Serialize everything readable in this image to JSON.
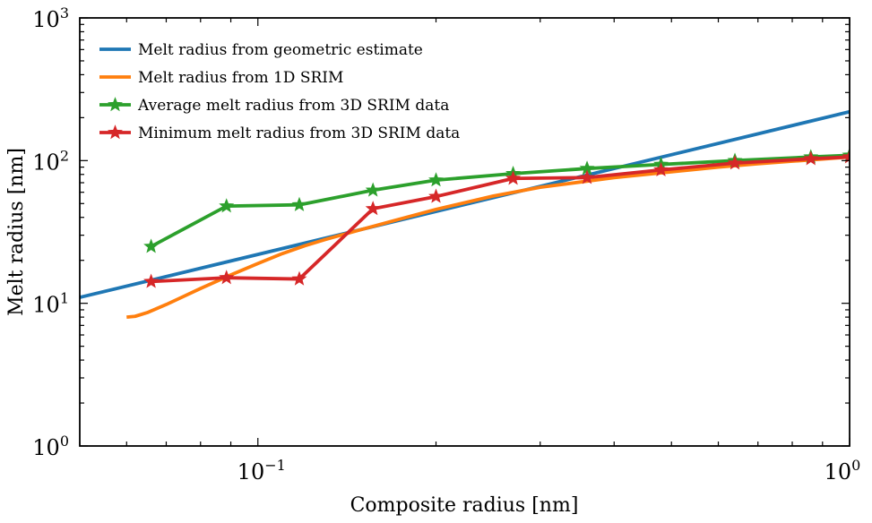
{
  "chart_data": {
    "type": "line",
    "xlabel": "Composite radius [nm]",
    "ylabel": "Melt radius [nm]",
    "x_scale": "log",
    "y_scale": "log",
    "xlim": [
      0.05,
      1
    ],
    "ylim": [
      1,
      1000
    ],
    "x_ticks": [
      {
        "value": 0.1,
        "base": "10",
        "exp": "−1"
      },
      {
        "value": 1,
        "base": "10",
        "exp": "0"
      }
    ],
    "y_ticks": [
      {
        "value": 1,
        "base": "10",
        "exp": "0"
      },
      {
        "value": 10,
        "base": "10",
        "exp": "1"
      },
      {
        "value": 100,
        "base": "10",
        "exp": "2"
      },
      {
        "value": 1000,
        "base": "10",
        "exp": "3"
      }
    ],
    "grid": false,
    "legend_position": "top-left",
    "series": [
      {
        "name": "Melt radius from geometric estimate",
        "color": "#1f77b4",
        "marker": "none",
        "x": [
          0.05,
          1
        ],
        "y": [
          11,
          220
        ]
      },
      {
        "name": "Melt radius from 1D SRIM",
        "color": "#ff7f0e",
        "marker": "none",
        "x": [
          0.06,
          0.062,
          0.065,
          0.07,
          0.075,
          0.08,
          0.09,
          0.1,
          0.11,
          0.12,
          0.13,
          0.15,
          0.17,
          0.2,
          0.25,
          0.3,
          0.4,
          0.5,
          0.6,
          0.7,
          0.8,
          0.9,
          1.0
        ],
        "y": [
          8.0,
          8.1,
          8.6,
          9.8,
          11.2,
          12.7,
          15.8,
          19.0,
          22.3,
          25.3,
          28.0,
          33.0,
          38.0,
          45.5,
          56.5,
          65.0,
          76.0,
          83.5,
          90.0,
          95.0,
          99.0,
          102.5,
          106.0
        ]
      },
      {
        "name": "Average melt radius from 3D SRIM data",
        "color": "#2ca02c",
        "marker": "star",
        "x": [
          0.066,
          0.0885,
          0.1175,
          0.1565,
          0.2,
          0.27,
          0.36,
          0.48,
          0.64,
          0.86,
          1.0
        ],
        "y": [
          25,
          48,
          49,
          62,
          73,
          81,
          88,
          94,
          100,
          106,
          109
        ]
      },
      {
        "name": "Minimum melt radius from 3D SRIM data",
        "color": "#d62728",
        "marker": "star",
        "x": [
          0.066,
          0.0885,
          0.1175,
          0.1565,
          0.2,
          0.27,
          0.36,
          0.48,
          0.64,
          0.86,
          1.0
        ],
        "y": [
          14.2,
          15.1,
          14.8,
          46,
          56,
          75,
          76,
          86,
          96,
          103,
          106
        ]
      }
    ]
  }
}
